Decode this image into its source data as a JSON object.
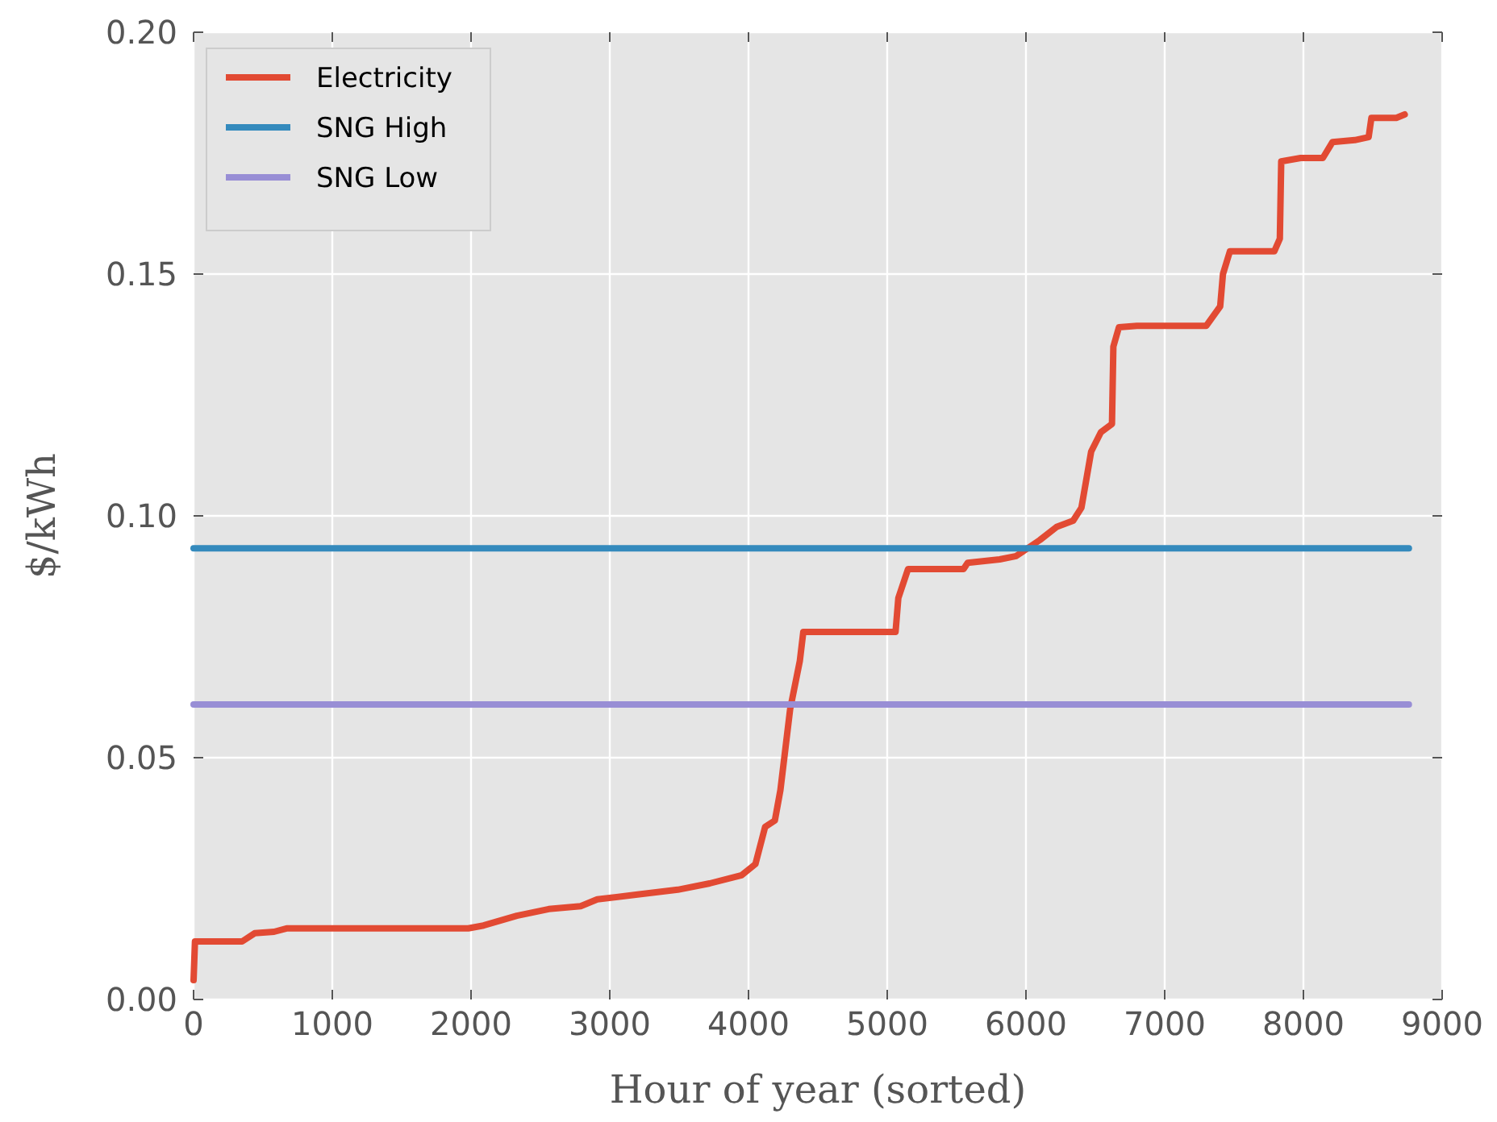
{
  "chart_data": {
    "type": "line",
    "xlabel": "Hour of year (sorted)",
    "ylabel": "$/kWh",
    "xlim": [
      0,
      9000
    ],
    "xticks": [
      0,
      1000,
      2000,
      3000,
      4000,
      5000,
      6000,
      7000,
      8000,
      9000
    ],
    "ylim": [
      0,
      0.2
    ],
    "yticks": [
      {
        "value": 0,
        "label": "0.00"
      },
      {
        "value": 0.05,
        "label": "0.05"
      },
      {
        "value": 0.1,
        "label": "0.10"
      },
      {
        "value": 0.15,
        "label": "0.15"
      },
      {
        "value": 0.2,
        "label": "0.20"
      }
    ],
    "grid": true,
    "legend": "top left",
    "line_style": "solid",
    "marker": "none",
    "series": [
      {
        "name": "Electricity",
        "color": "#e24a33",
        "x": [
          0,
          10,
          350,
          440,
          580,
          670,
          1980,
          2090,
          2330,
          2560,
          2790,
          2910,
          3200,
          3490,
          3720,
          3950,
          4050,
          4120,
          4190,
          4230,
          4300,
          4370,
          4395,
          5060,
          5080,
          5150,
          5550,
          5580,
          5810,
          5930,
          6100,
          6220,
          6340,
          6400,
          6470,
          6540,
          6620,
          6630,
          6670,
          6800,
          7300,
          7400,
          7420,
          7470,
          7790,
          7830,
          7840,
          7980,
          8140,
          8210,
          8370,
          8470,
          8490,
          8670,
          8730
        ],
        "values": [
          0.004,
          0.012,
          0.012,
          0.0137,
          0.014,
          0.0147,
          0.0147,
          0.0153,
          0.0173,
          0.0187,
          0.0193,
          0.0207,
          0.0217,
          0.0227,
          0.024,
          0.0257,
          0.028,
          0.0357,
          0.037,
          0.0433,
          0.06,
          0.07,
          0.076,
          0.076,
          0.083,
          0.089,
          0.089,
          0.0903,
          0.091,
          0.0917,
          0.095,
          0.0977,
          0.099,
          0.1017,
          0.1133,
          0.1173,
          0.119,
          0.135,
          0.139,
          0.1393,
          0.1393,
          0.1433,
          0.15,
          0.1547,
          0.1547,
          0.1573,
          0.1733,
          0.174,
          0.174,
          0.1773,
          0.1777,
          0.1783,
          0.1823,
          0.1823,
          0.183
        ]
      },
      {
        "name": "SNG High",
        "color": "#348abd",
        "x": [
          0,
          8760
        ],
        "values": [
          0.0933,
          0.0933
        ]
      },
      {
        "name": "SNG Low",
        "color": "#988ed5",
        "x": [
          0,
          8760
        ],
        "values": [
          0.061,
          0.061
        ]
      }
    ]
  }
}
